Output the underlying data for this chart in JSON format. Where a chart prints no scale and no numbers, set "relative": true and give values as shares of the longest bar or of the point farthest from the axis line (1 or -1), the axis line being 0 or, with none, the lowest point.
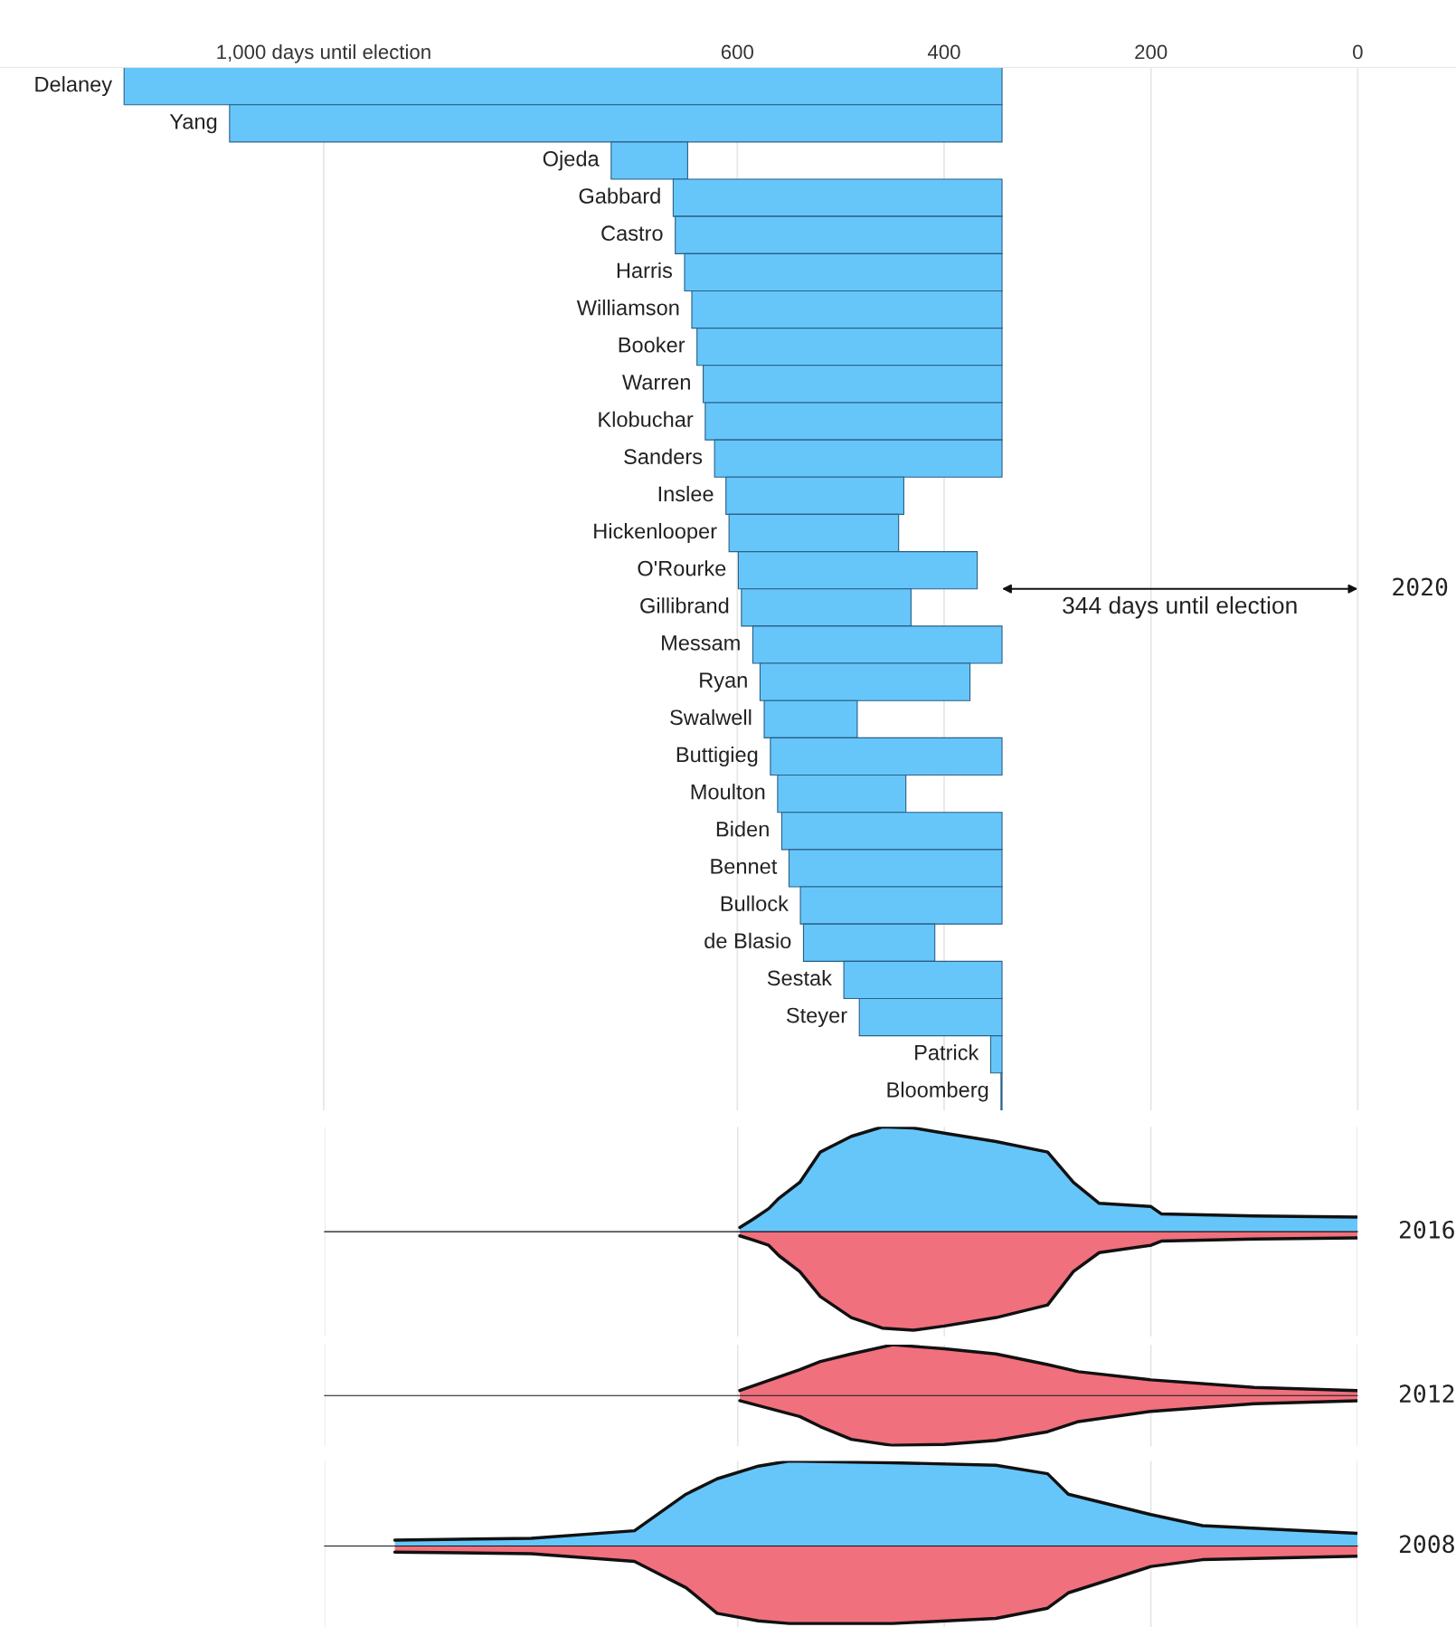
{
  "chart_data": [
    {
      "type": "bar",
      "orientation": "horizontal",
      "categories": [
        "Delaney",
        "Yang",
        "Ojeda",
        "Gabbard",
        "Castro",
        "Harris",
        "Williamson",
        "Booker",
        "Warren",
        "Klobuchar",
        "Sanders",
        "Inslee",
        "Hickenlooper",
        "O'Rourke",
        "Gillibrand",
        "Messam",
        "Ryan",
        "Swalwell",
        "Buttigieg",
        "Moulton",
        "Biden",
        "Bennet",
        "Bullock",
        "de Blasio",
        "Sestak",
        "Steyer",
        "Patrick",
        "Bloomberg"
      ],
      "base": [
        344,
        344,
        648,
        344,
        344,
        344,
        344,
        344,
        344,
        344,
        344,
        439,
        444,
        368,
        432,
        344,
        375,
        484,
        344,
        437,
        344,
        344,
        344,
        409,
        344,
        344,
        344,
        344
      ],
      "values": [
        849,
        747,
        74,
        318,
        316,
        307,
        300,
        295,
        289,
        287,
        278,
        172,
        164,
        231,
        164,
        241,
        203,
        90,
        224,
        124,
        213,
        206,
        195,
        127,
        153,
        138,
        11,
        1
      ],
      "color": "#66c6fa",
      "xlim": [
        1313,
        -95
      ],
      "xticks": [
        {
          "value": 1000,
          "label": "1,000 days until election"
        },
        600,
        400,
        200,
        0
      ],
      "grid": "x",
      "annotations": [
        "344 days until election",
        "2020"
      ]
    },
    {
      "type": "area",
      "relative": true,
      "x": [
        598,
        585,
        570,
        560,
        540,
        520,
        490,
        460,
        430,
        400,
        350,
        300,
        275,
        250,
        200,
        190,
        100,
        0
      ],
      "series": [
        {
          "color": "#66c6fa",
          "values": [
            0.04,
            0.12,
            0.22,
            0.32,
            0.47,
            0.76,
            0.91,
            1,
            0.99,
            0.94,
            0.86,
            0.76,
            0.47,
            0.27,
            0.24,
            0.17,
            0.15,
            0.14
          ]
        },
        {
          "color": "#f0707e",
          "values": [
            -0.04,
            -0.08,
            -0.13,
            -0.23,
            -0.38,
            -0.62,
            -0.82,
            -0.92,
            -0.94,
            -0.9,
            -0.82,
            -0.7,
            -0.38,
            -0.2,
            -0.13,
            -0.09,
            -0.07,
            -0.06
          ]
        }
      ],
      "xlim": [
        1000,
        0
      ],
      "xticks": [
        1000,
        600,
        400,
        200,
        0
      ],
      "grid": "x",
      "tick_labels": false,
      "annotations": [
        "2016"
      ]
    },
    {
      "type": "area",
      "relative": true,
      "x": [
        598,
        540,
        520,
        490,
        450,
        400,
        350,
        300,
        270,
        200,
        100,
        0
      ],
      "series": [
        {
          "color": "#f0707e",
          "values": [
            0.1,
            0.51,
            0.67,
            0.82,
            1,
            0.92,
            0.82,
            0.61,
            0.47,
            0.31,
            0.16,
            0.1
          ]
        },
        {
          "color": "#f0707e",
          "values": [
            -0.1,
            -0.41,
            -0.61,
            -0.86,
            -0.98,
            -0.96,
            -0.88,
            -0.71,
            -0.51,
            -0.31,
            -0.16,
            -0.1
          ]
        }
      ],
      "xlim": [
        1000,
        0
      ],
      "xticks": [
        1000,
        600,
        400,
        200,
        0
      ],
      "grid": "x",
      "tick_labels": false,
      "annotations": [
        "2012"
      ]
    },
    {
      "type": "area",
      "relative": true,
      "x": [
        932,
        800,
        700,
        650,
        620,
        580,
        550,
        450,
        350,
        300,
        280,
        200,
        150,
        0
      ],
      "series": [
        {
          "color": "#66c6fa",
          "values": [
            0.07,
            0.09,
            0.18,
            0.61,
            0.79,
            0.94,
            1,
            0.98,
            0.95,
            0.85,
            0.61,
            0.37,
            0.24,
            0.15
          ]
        },
        {
          "color": "#f0707e",
          "values": [
            -0.07,
            -0.09,
            -0.18,
            -0.49,
            -0.79,
            -0.88,
            -0.91,
            -0.91,
            -0.85,
            -0.73,
            -0.55,
            -0.24,
            -0.16,
            -0.12
          ]
        }
      ],
      "xlim": [
        1000,
        0
      ],
      "xticks": [
        1000,
        600,
        400,
        200,
        0
      ],
      "grid": "x",
      "tick_labels": false,
      "annotations": [
        "2008"
      ]
    }
  ]
}
